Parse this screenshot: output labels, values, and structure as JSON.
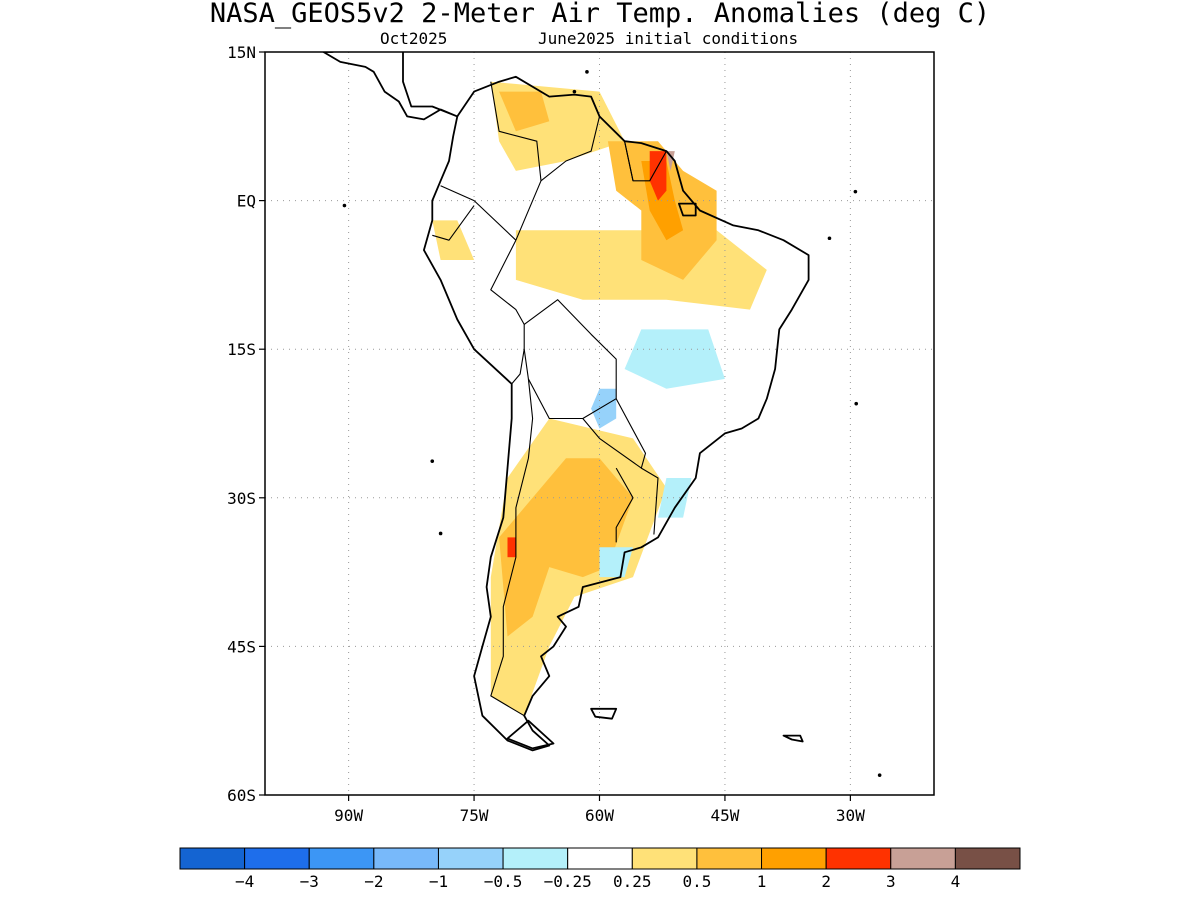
{
  "title": "NASA_GEOS5v2 2-Meter Air Temp. Anomalies (deg C)",
  "subtitle_month": "Oct2025",
  "subtitle_ic": "June2025 initial conditions",
  "map": {
    "lon_range": [
      -100,
      -20
    ],
    "lat_range": [
      -60,
      15
    ],
    "lat_ticks": [
      {
        "value": 15,
        "label": "15N"
      },
      {
        "value": 0,
        "label": "EQ"
      },
      {
        "value": -15,
        "label": "15S"
      },
      {
        "value": -30,
        "label": "30S"
      },
      {
        "value": -45,
        "label": "45S"
      },
      {
        "value": -60,
        "label": "60S"
      }
    ],
    "lon_ticks": [
      {
        "value": -90,
        "label": "90W"
      },
      {
        "value": -75,
        "label": "75W"
      },
      {
        "value": -60,
        "label": "60W"
      },
      {
        "value": -45,
        "label": "45W"
      },
      {
        "value": -30,
        "label": "30W"
      }
    ],
    "grid": "dotted"
  },
  "colorbar": {
    "colors": [
      "#1464d2",
      "#1e6eeb",
      "#3c96f5",
      "#78b9fa",
      "#96d2fa",
      "#b4f0fa",
      "#ffffff",
      "#ffe178",
      "#ffc03c",
      "#ffa000",
      "#ff3200",
      "#c8a096",
      "#785046"
    ],
    "labels": [
      "−4",
      "−3",
      "−2",
      "−1",
      "−0.5",
      "−0.25",
      "0.25",
      "0.5",
      "1",
      "2",
      "3",
      "4"
    ]
  },
  "anomaly_regions": [
    {
      "level": 7,
      "points": [
        [
          -73,
          12
        ],
        [
          -60,
          11
        ],
        [
          -57,
          6
        ],
        [
          -64,
          4
        ],
        [
          -70,
          3
        ],
        [
          -72,
          6
        ]
      ]
    },
    {
      "level": 7,
      "points": [
        [
          -80,
          -2
        ],
        [
          -77,
          -2
        ],
        [
          -75,
          -6
        ],
        [
          -79,
          -6
        ]
      ]
    },
    {
      "level": 7,
      "points": [
        [
          -70,
          -3
        ],
        [
          -46,
          -3
        ],
        [
          -40,
          -7
        ],
        [
          -42,
          -11
        ],
        [
          -52,
          -10
        ],
        [
          -62,
          -10
        ],
        [
          -70,
          -8
        ]
      ]
    },
    {
      "level": 7,
      "points": [
        [
          -66,
          -22
        ],
        [
          -56,
          -24
        ],
        [
          -52,
          -29
        ],
        [
          -56,
          -38
        ],
        [
          -63,
          -40
        ],
        [
          -66,
          -45
        ],
        [
          -69,
          -52
        ],
        [
          -73,
          -50
        ],
        [
          -73,
          -38
        ],
        [
          -71,
          -28
        ]
      ]
    },
    {
      "level": 8,
      "points": [
        [
          -72,
          11
        ],
        [
          -67,
          11
        ],
        [
          -66,
          8
        ],
        [
          -70,
          7
        ]
      ]
    },
    {
      "level": 8,
      "points": [
        [
          -59,
          6
        ],
        [
          -53,
          6
        ],
        [
          -50,
          3
        ],
        [
          -46,
          1
        ],
        [
          -46,
          -4
        ],
        [
          -50,
          -8
        ],
        [
          -55,
          -6
        ],
        [
          -55,
          -1
        ],
        [
          -58,
          1
        ]
      ]
    },
    {
      "level": 8,
      "points": [
        [
          -64,
          -26
        ],
        [
          -60,
          -26
        ],
        [
          -56,
          -30
        ],
        [
          -59,
          -37
        ],
        [
          -62,
          -38
        ],
        [
          -66,
          -37
        ],
        [
          -68,
          -42
        ],
        [
          -71,
          -44
        ],
        [
          -72,
          -34
        ]
      ]
    },
    {
      "level": 9,
      "points": [
        [
          -55,
          4
        ],
        [
          -52,
          4
        ],
        [
          -51,
          0
        ],
        [
          -50,
          -3
        ],
        [
          -52,
          -4
        ],
        [
          -54,
          -1
        ]
      ]
    },
    {
      "level": 10,
      "points": [
        [
          -54,
          5
        ],
        [
          -52,
          5
        ],
        [
          -52,
          1
        ],
        [
          -53,
          0
        ],
        [
          -54,
          2
        ]
      ]
    },
    {
      "level": 10,
      "points": [
        [
          -71,
          -34
        ],
        [
          -70,
          -34
        ],
        [
          -70,
          -36
        ],
        [
          -71,
          -36
        ]
      ]
    },
    {
      "level": 11,
      "points": [
        [
          -52,
          5
        ],
        [
          -51,
          5
        ],
        [
          -51.5,
          3
        ]
      ]
    },
    {
      "level": 5,
      "points": [
        [
          -55,
          -13
        ],
        [
          -47,
          -13
        ],
        [
          -45,
          -18
        ],
        [
          -52,
          -19
        ],
        [
          -57,
          -17
        ]
      ]
    },
    {
      "level": 5,
      "points": [
        [
          -52,
          -28
        ],
        [
          -49,
          -28
        ],
        [
          -50,
          -32
        ],
        [
          -53,
          -32
        ]
      ]
    },
    {
      "level": 5,
      "points": [
        [
          -60,
          -35
        ],
        [
          -56,
          -35
        ],
        [
          -57,
          -38
        ],
        [
          -60,
          -38
        ]
      ]
    },
    {
      "level": 4,
      "points": [
        [
          -60,
          -19
        ],
        [
          -58,
          -19
        ],
        [
          -58,
          -22
        ],
        [
          -60,
          -23
        ],
        [
          -61,
          -21
        ]
      ]
    }
  ],
  "landmasses": [
    {
      "name": "south-america",
      "points": [
        [
          -77,
          8.5
        ],
        [
          -75,
          11
        ],
        [
          -72,
          12
        ],
        [
          -70,
          12.5
        ],
        [
          -66,
          10.5
        ],
        [
          -63,
          10.7
        ],
        [
          -61,
          10.5
        ],
        [
          -60,
          8.5
        ],
        [
          -57,
          6
        ],
        [
          -55,
          5.8
        ],
        [
          -52,
          5
        ],
        [
          -51,
          4
        ],
        [
          -50,
          1
        ],
        [
          -48,
          -1
        ],
        [
          -44,
          -2.5
        ],
        [
          -41,
          -3
        ],
        [
          -38,
          -4
        ],
        [
          -35,
          -5.5
        ],
        [
          -35,
          -8
        ],
        [
          -37,
          -11
        ],
        [
          -38.5,
          -13
        ],
        [
          -39,
          -17
        ],
        [
          -40,
          -20
        ],
        [
          -41,
          -22
        ],
        [
          -43,
          -23
        ],
        [
          -45,
          -23.5
        ],
        [
          -48,
          -25.5
        ],
        [
          -48.5,
          -28
        ],
        [
          -51,
          -31
        ],
        [
          -53,
          -34
        ],
        [
          -55,
          -35
        ],
        [
          -57,
          -35.5
        ],
        [
          -57.5,
          -38
        ],
        [
          -62,
          -39
        ],
        [
          -62.5,
          -41
        ],
        [
          -65,
          -42
        ],
        [
          -64,
          -43
        ],
        [
          -65.5,
          -45
        ],
        [
          -67,
          -46
        ],
        [
          -66,
          -48
        ],
        [
          -68,
          -50
        ],
        [
          -69,
          -52
        ],
        [
          -68,
          -53.5
        ],
        [
          -66,
          -55
        ],
        [
          -68,
          -55.5
        ],
        [
          -71,
          -54.5
        ],
        [
          -74,
          -52
        ],
        [
          -75,
          -48
        ],
        [
          -74,
          -45
        ],
        [
          -73,
          -42
        ],
        [
          -73.5,
          -39
        ],
        [
          -73,
          -36
        ],
        [
          -71.5,
          -32
        ],
        [
          -71,
          -27
        ],
        [
          -70.5,
          -22
        ],
        [
          -70.5,
          -18.5
        ],
        [
          -75,
          -15
        ],
        [
          -77,
          -12
        ],
        [
          -79,
          -8
        ],
        [
          -81,
          -5
        ],
        [
          -80,
          -2
        ],
        [
          -80,
          0
        ],
        [
          -79,
          2
        ],
        [
          -78,
          4
        ],
        [
          -77.5,
          6.5
        ]
      ]
    },
    {
      "name": "central-america",
      "points": [
        [
          -77,
          8.5
        ],
        [
          -79,
          9.2
        ],
        [
          -81,
          8.2
        ],
        [
          -83,
          8.5
        ],
        [
          -84,
          10
        ],
        [
          -85.7,
          11
        ],
        [
          -87,
          13
        ],
        [
          -88,
          13.5
        ],
        [
          -91,
          14
        ],
        [
          -93,
          15
        ],
        [
          -92,
          15
        ],
        [
          -89,
          15.5
        ],
        [
          -88,
          15.8
        ],
        [
          -85,
          16
        ],
        [
          -83.5,
          15
        ],
        [
          -83.5,
          12
        ],
        [
          -82.5,
          9.5
        ],
        [
          -80,
          9.5
        ]
      ]
    },
    {
      "name": "tierra-del-fuego",
      "points": [
        [
          -68.5,
          -52.5
        ],
        [
          -65.5,
          -54.8
        ],
        [
          -68,
          -55.3
        ],
        [
          -71,
          -54.3
        ]
      ]
    },
    {
      "name": "falkland-islands",
      "points": [
        [
          -61,
          -51.3
        ],
        [
          -58,
          -51.3
        ],
        [
          -58.5,
          -52.3
        ],
        [
          -60.5,
          -52.1
        ]
      ]
    },
    {
      "name": "south-georgia",
      "points": [
        [
          -38,
          -54
        ],
        [
          -36,
          -54
        ],
        [
          -35.7,
          -54.6
        ],
        [
          -37,
          -54.4
        ]
      ]
    },
    {
      "name": "marajo-island",
      "points": [
        [
          -50.5,
          -0.3
        ],
        [
          -48.5,
          -0.3
        ],
        [
          -48.5,
          -1.5
        ],
        [
          -50,
          -1.5
        ]
      ]
    }
  ],
  "borders": [
    [
      [
        -73,
        12
      ],
      [
        -72,
        7
      ],
      [
        -67.5,
        6
      ],
      [
        -67,
        2
      ],
      [
        -70,
        -4
      ]
    ],
    [
      [
        -60,
        8.5
      ],
      [
        -61,
        5
      ],
      [
        -64,
        4
      ],
      [
        -67,
        2
      ]
    ],
    [
      [
        -60,
        8.5
      ],
      [
        -57,
        6
      ],
      [
        -56,
        2
      ]
    ],
    [
      [
        -57,
        6
      ],
      [
        -56,
        2
      ],
      [
        -54,
        2
      ],
      [
        -52,
        5
      ]
    ],
    [
      [
        -79,
        1.5
      ],
      [
        -75,
        0
      ],
      [
        -70,
        -4
      ]
    ],
    [
      [
        -80,
        -3.5
      ],
      [
        -78,
        -4
      ],
      [
        -75,
        -0.5
      ]
    ],
    [
      [
        -70,
        -4
      ],
      [
        -73,
        -9
      ],
      [
        -70,
        -11
      ],
      [
        -69,
        -12.5
      ]
    ],
    [
      [
        -69,
        -12.5
      ],
      [
        -65,
        -10
      ],
      [
        -61,
        -13.5
      ],
      [
        -58,
        -16
      ],
      [
        -58,
        -20
      ],
      [
        -62,
        -22
      ],
      [
        -66,
        -22
      ],
      [
        -68.5,
        -18
      ],
      [
        -69,
        -15
      ]
    ],
    [
      [
        -69,
        -12.5
      ],
      [
        -69,
        -15
      ],
      [
        -69.5,
        -17.5
      ],
      [
        -70.5,
        -18.5
      ]
    ],
    [
      [
        -68.5,
        -18
      ],
      [
        -68,
        -22
      ],
      [
        -68.5,
        -26
      ],
      [
        -70,
        -31
      ],
      [
        -70,
        -36
      ],
      [
        -71.5,
        -41
      ],
      [
        -71.5,
        -46
      ],
      [
        -73,
        -50
      ],
      [
        -69,
        -52
      ]
    ],
    [
      [
        -62,
        -22
      ],
      [
        -60,
        -24
      ],
      [
        -55,
        -27
      ],
      [
        -54.5,
        -25.5
      ],
      [
        -58,
        -20
      ]
    ],
    [
      [
        -58,
        -27
      ],
      [
        -56,
        -30
      ],
      [
        -58,
        -33
      ],
      [
        -58,
        -34.5
      ]
    ],
    [
      [
        -55,
        -27
      ],
      [
        -53,
        -28
      ],
      [
        -53.5,
        -33.7
      ]
    ]
  ],
  "islands": [
    {
      "name": "galapagos-islands",
      "lon": -90.5,
      "lat": -0.5
    },
    {
      "name": "caribbean-island-1",
      "lon": -61.5,
      "lat": 13
    },
    {
      "name": "caribbean-island-2",
      "lon": -63,
      "lat": 11
    },
    {
      "name": "fernando-de-noronha",
      "lon": -32.5,
      "lat": -3.8
    },
    {
      "name": "trindade-island",
      "lon": -29.3,
      "lat": -20.5
    },
    {
      "name": "juan-fernandez-islands",
      "lon": -79,
      "lat": -33.6
    },
    {
      "name": "san-felix-island",
      "lon": -80,
      "lat": -26.3
    },
    {
      "name": "st-peter-paul-rocks",
      "lon": -29.4,
      "lat": 0.9
    },
    {
      "name": "south-sandwich-islands",
      "lon": -26.5,
      "lat": -58
    }
  ]
}
